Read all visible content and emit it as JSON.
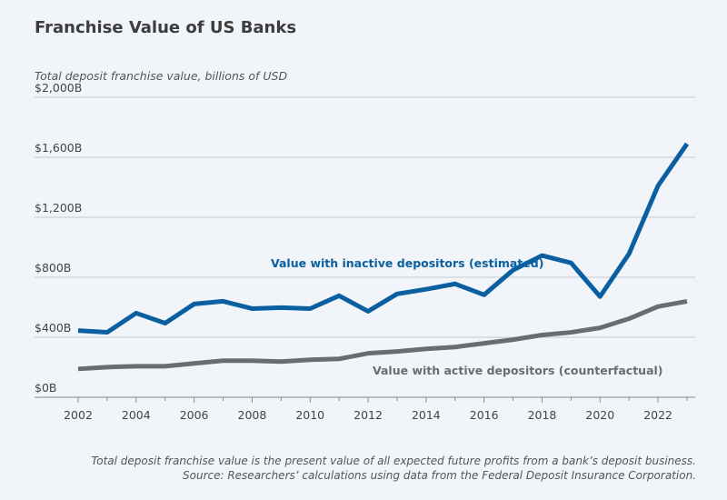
{
  "title": "Franchise Value of US Banks",
  "subtitle": "Total deposit franchise value, billions of USD",
  "notes": [
    "Total deposit franchise value is the present value of all expected future profits from a bank’s deposit business.",
    "Source: Researchers’ calculations using data from the Federal Deposit Insurance Corporation."
  ],
  "chart_data": {
    "type": "line",
    "title": "Franchise Value of US Banks",
    "ylabel": "Total deposit franchise value, billions of USD",
    "xlabel": "",
    "ylim": [
      0,
      2000
    ],
    "xlim": [
      2002,
      2023
    ],
    "grid": true,
    "y_ticks": [
      0,
      400,
      800,
      1200,
      1600,
      2000
    ],
    "y_tick_labels": [
      "$0B",
      "$400B",
      "$800B",
      "$1,200B",
      "$1,600B",
      "$2,000B"
    ],
    "x_ticks": [
      2002,
      2004,
      2006,
      2008,
      2010,
      2012,
      2014,
      2016,
      2018,
      2020,
      2022
    ],
    "x_tick_labels": [
      "2002",
      "2004",
      "2006",
      "2008",
      "2010",
      "2012",
      "2014",
      "2016",
      "2018",
      "2020",
      "2022"
    ],
    "x": [
      2002,
      2003,
      2004,
      2005,
      2006,
      2007,
      2008,
      2009,
      2010,
      2011,
      2012,
      2013,
      2014,
      2015,
      2016,
      2017,
      2018,
      2019,
      2020,
      2021,
      2022,
      2023
    ],
    "series": [
      {
        "name": "Value with inactive depositors (estimated)",
        "color": "#0a5fa0",
        "values": [
          445,
          433,
          561,
          494,
          622,
          640,
          591,
          598,
          591,
          677,
          573,
          689,
          720,
          756,
          683,
          848,
          945,
          896,
          671,
          957,
          1410,
          1690
        ]
      },
      {
        "name": "Value with active depositors (counterfactual)",
        "color": "#6b6c6e",
        "values": [
          189,
          201,
          207,
          207,
          226,
          244,
          244,
          238,
          250,
          256,
          293,
          305,
          323,
          335,
          360,
          384,
          415,
          433,
          463,
          524,
          605,
          640
        ]
      }
    ]
  }
}
